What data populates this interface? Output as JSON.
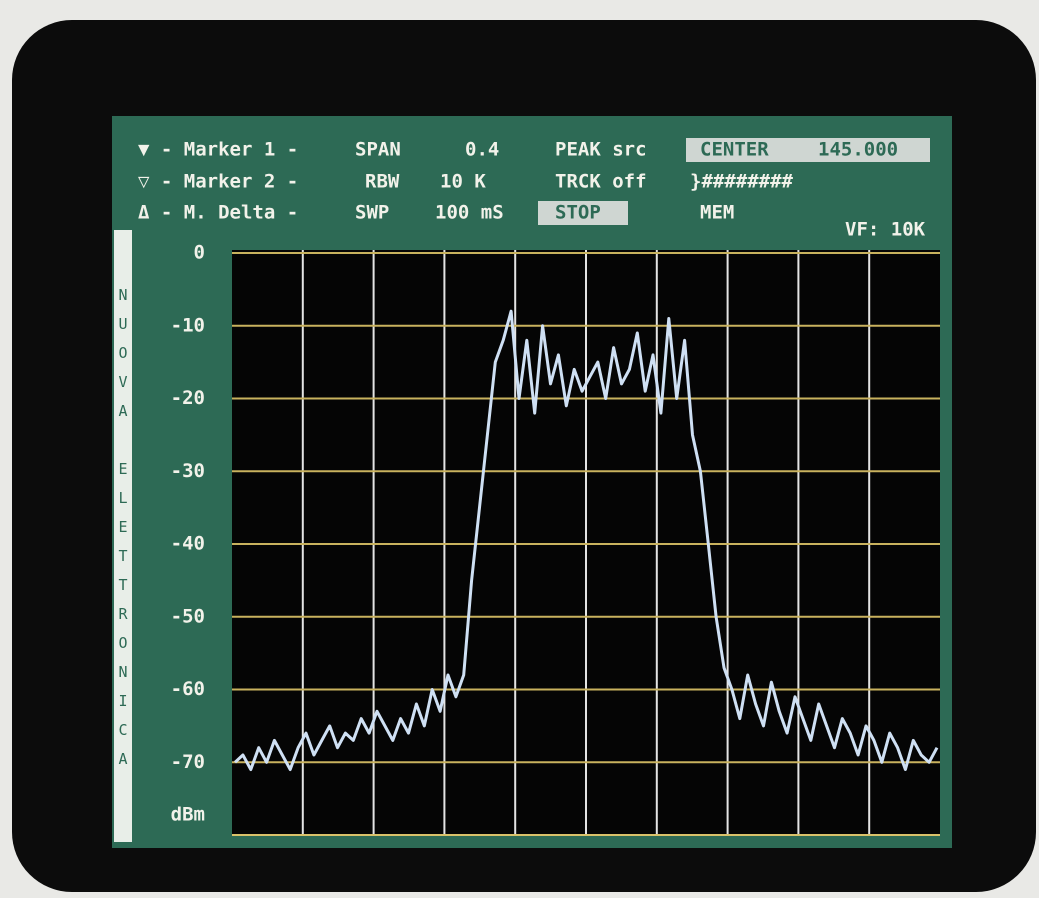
{
  "header": {
    "line1": {
      "marker": "▼ - Marker 1 -",
      "param": "SPAN",
      "param_value": "0.4",
      "mode": "PEAK src",
      "box_label": "CENTER",
      "box_value": "145.000"
    },
    "line2": {
      "marker": "▽ - Marker 2 -",
      "param": "RBW",
      "param_value": "10 K",
      "mode": "TRCK off",
      "status": "}########"
    },
    "line3": {
      "marker": "Δ - M. Delta -",
      "param": "SWP",
      "param_value": "100 mS",
      "box_label": "STOP",
      "mode": "MEM",
      "vf": "VF: 10K"
    }
  },
  "side_label": "NUOVA ELETTRONICA",
  "chart_data": {
    "type": "line",
    "y_unit": "dBm",
    "ylim": [
      -80,
      0
    ],
    "yticks": [
      0,
      -10,
      -20,
      -30,
      -40,
      -50,
      -60,
      -70
    ],
    "grid": true,
    "color": "#cfe0f4",
    "values": [
      -70,
      -69,
      -71,
      -68,
      -70,
      -67,
      -69,
      -71,
      -68,
      -66,
      -69,
      -67,
      -65,
      -68,
      -66,
      -67,
      -64,
      -66,
      -63,
      -65,
      -67,
      -64,
      -66,
      -62,
      -65,
      -60,
      -63,
      -58,
      -61,
      -58,
      -45,
      -35,
      -25,
      -15,
      -12,
      -8,
      -20,
      -12,
      -22,
      -10,
      -18,
      -14,
      -21,
      -16,
      -19,
      -17,
      -15,
      -20,
      -13,
      -18,
      -16,
      -11,
      -19,
      -14,
      -22,
      -9,
      -20,
      -12,
      -25,
      -30,
      -40,
      -50,
      -57,
      -60,
      -64,
      -58,
      -62,
      -65,
      -59,
      -63,
      -66,
      -61,
      -64,
      -67,
      -62,
      -65,
      -68,
      -64,
      -66,
      -69,
      -65,
      -67,
      -70,
      -66,
      -68,
      -71,
      -67,
      -69,
      -70,
      -68
    ]
  }
}
